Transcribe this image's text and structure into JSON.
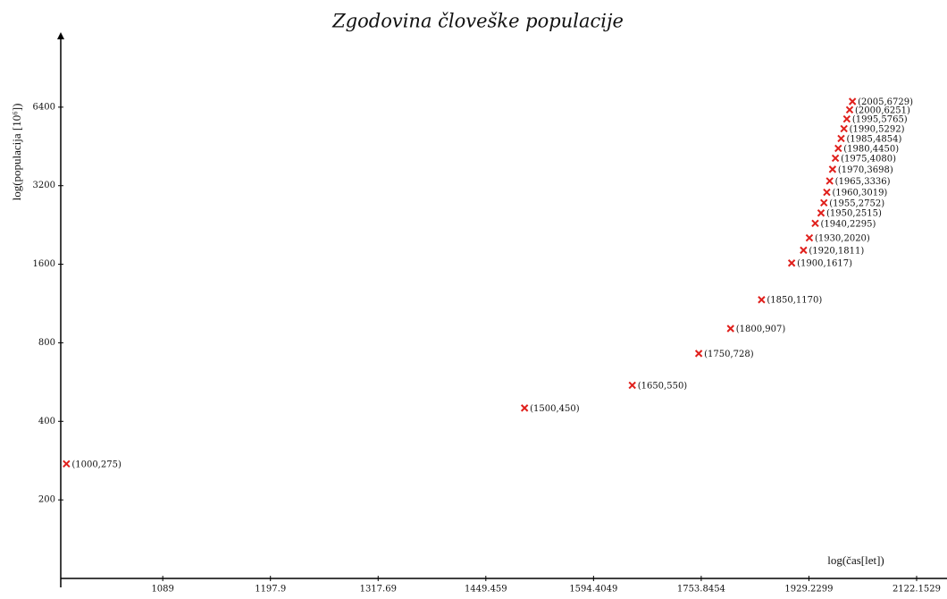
{
  "chart_data": {
    "type": "scatter",
    "title": "Zgodovina človeške populacije",
    "xlabel": "log(čas[let])",
    "ylabel": "log(populacija [10⁶])",
    "x": [
      1000,
      1500,
      1650,
      1750,
      1800,
      1850,
      1900,
      1920,
      1930,
      1940,
      1950,
      1955,
      1960,
      1965,
      1970,
      1975,
      1980,
      1985,
      1990,
      1995,
      2000,
      2005
    ],
    "values": [
      275,
      450,
      550,
      728,
      907,
      1170,
      1617,
      1811,
      2020,
      2295,
      2515,
      2752,
      3019,
      3336,
      3698,
      4080,
      4450,
      4854,
      5292,
      5765,
      6251,
      6729
    ],
    "value_labels": [
      "(1000,275)",
      "(1500,450)",
      "(1650,550)",
      "(1750,728)",
      "(1800,907)",
      "(1850,1170)",
      "(1900,1617)",
      "(1920,1811)",
      "(1930,2020)",
      "(1940,2295)",
      "(1950,2515)",
      "(1955,2752)",
      "(1960,3019)",
      "(1965,3336)",
      "(1970,3698)",
      "(1975,4080)",
      "(1980,4450)",
      "(1985,4854)",
      "(1990,5292)",
      "(1995,5765)",
      "(2000,6251)",
      "(2005,6729)"
    ],
    "color": "#e0201c",
    "xlog": true,
    "ylog": true,
    "xlim": [
      995,
      2180
    ],
    "ylim": [
      100,
      12800
    ],
    "xticks": [
      1089,
      1197.9,
      1317.69,
      1449.459,
      1594.4049,
      1753.8454,
      1929.2299,
      2122.1529
    ],
    "yticks": [
      200,
      400,
      800,
      1600,
      3200,
      6400
    ]
  }
}
